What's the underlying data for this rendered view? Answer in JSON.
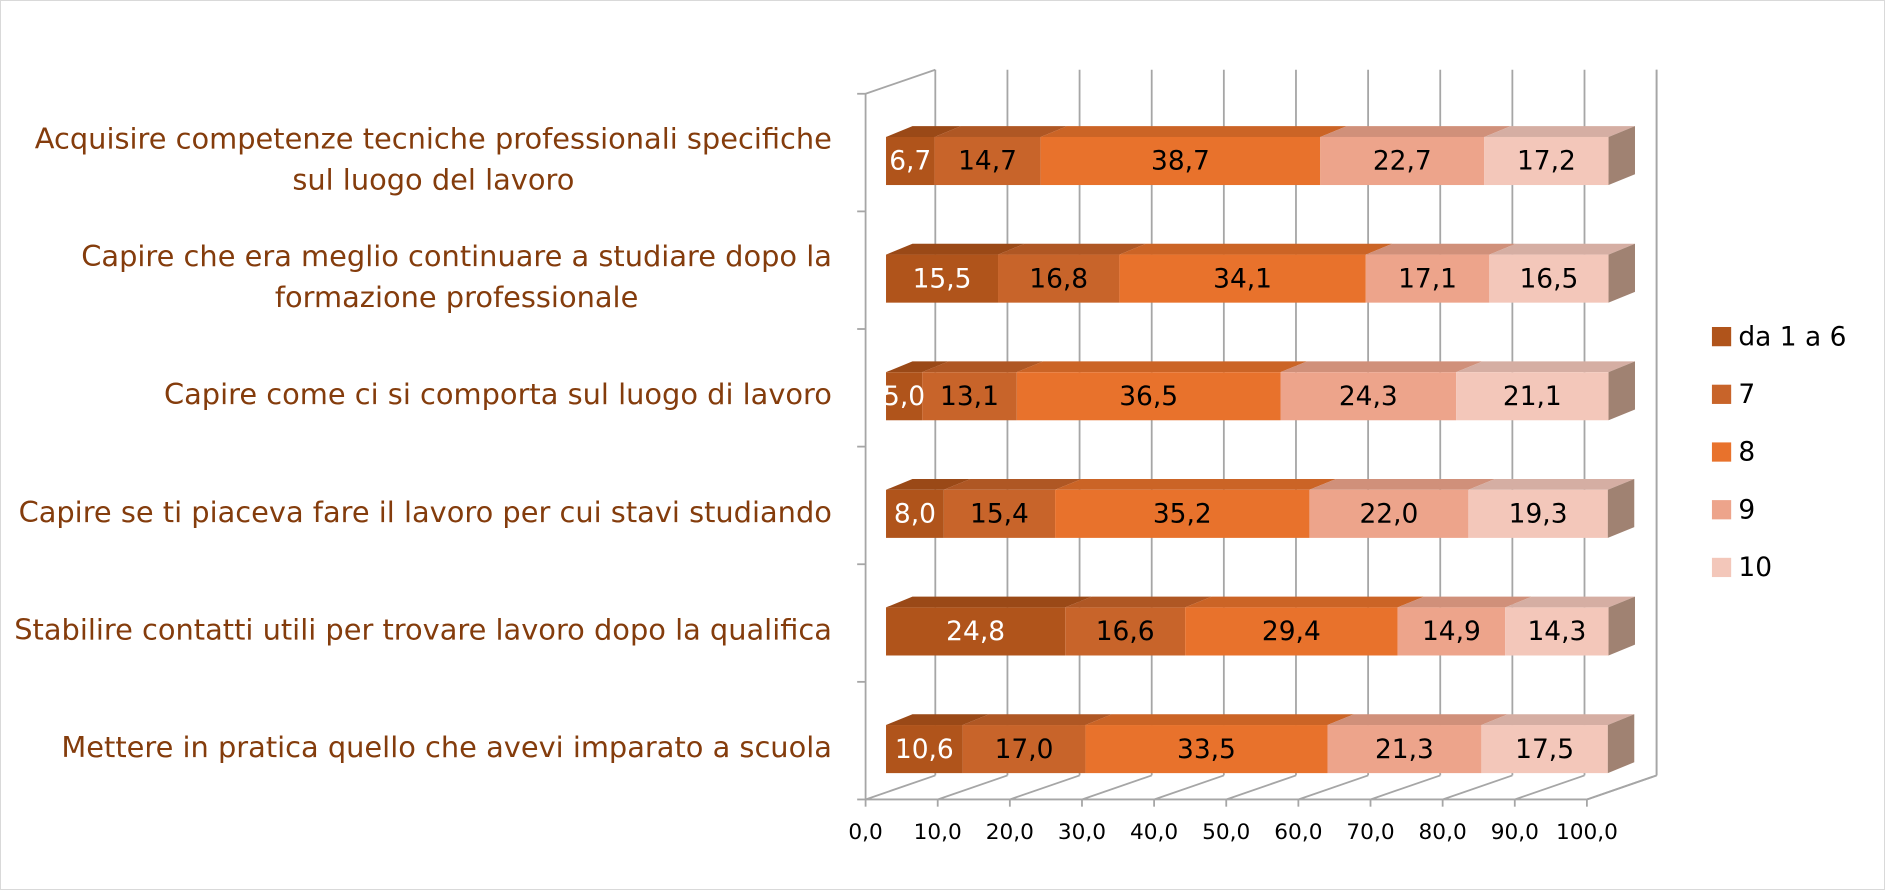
{
  "chart_data": {
    "type": "bar3d_stacked_horizontal",
    "categories": [
      "Acquisire competenze tecniche professionali specifiche\nsul luogo del lavoro",
      "Capire che era meglio continuare a studiare dopo la\nformazione professionale",
      "Capire come ci si comporta sul luogo di lavoro",
      "Capire se ti piaceva fare il lavoro per cui stavi studiando",
      "Stabilire contatti utili per trovare lavoro dopo la qualifica",
      "Mettere in pratica quello che avevi imparato a scuola"
    ],
    "series": [
      {
        "name": "da 1 a 6",
        "color": "#b0541b",
        "values": [
          6.7,
          15.5,
          5.0,
          8.0,
          24.8,
          10.6
        ],
        "value_labels": [
          "6,7",
          "15,5",
          "5,0",
          "8,0",
          "24,8",
          "10,6"
        ]
      },
      {
        "name": "7",
        "color": "#c8642a",
        "values": [
          14.7,
          16.8,
          13.1,
          15.4,
          16.6,
          17.0
        ],
        "value_labels": [
          "14,7",
          "16,8",
          "13,1",
          "15,4",
          "16,6",
          "17,0"
        ]
      },
      {
        "name": "8",
        "color": "#e8722c",
        "values": [
          38.7,
          34.1,
          36.5,
          35.2,
          29.4,
          33.5
        ],
        "value_labels": [
          "38,7",
          "34,1",
          "36,5",
          "35,2",
          "29,4",
          "33,5"
        ]
      },
      {
        "name": "9",
        "color": "#eda48b",
        "values": [
          22.7,
          17.1,
          24.3,
          22.0,
          14.9,
          21.3
        ],
        "value_labels": [
          "22,7",
          "17,1",
          "24,3",
          "22,0",
          "14,9",
          "21,3"
        ]
      },
      {
        "name": "10",
        "color": "#f3c7ba",
        "values": [
          17.2,
          16.5,
          21.1,
          19.3,
          14.3,
          17.5
        ],
        "value_labels": [
          "17,2",
          "16,5",
          "21,1",
          "19,3",
          "14,3",
          "17,5"
        ]
      }
    ],
    "xlim": [
      0,
      100
    ],
    "xticks": [
      {
        "value": 0,
        "label": "0,0"
      },
      {
        "value": 10,
        "label": "10,0"
      },
      {
        "value": 20,
        "label": "20,0"
      },
      {
        "value": 30,
        "label": "30,0"
      },
      {
        "value": 40,
        "label": "40,0"
      },
      {
        "value": 50,
        "label": "50,0"
      },
      {
        "value": 60,
        "label": "60,0"
      },
      {
        "value": 70,
        "label": "70,0"
      },
      {
        "value": 80,
        "label": "80,0"
      },
      {
        "value": 90,
        "label": "90,0"
      },
      {
        "value": 100,
        "label": "100,0"
      }
    ],
    "grid": true,
    "legend": "right"
  }
}
